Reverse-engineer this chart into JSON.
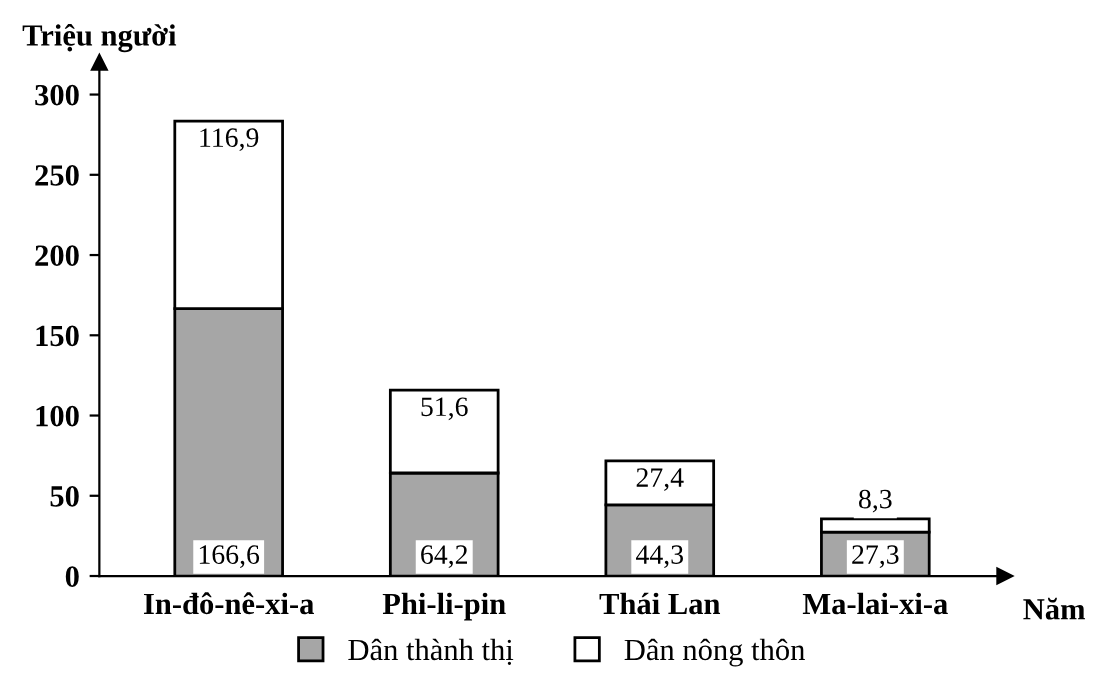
{
  "chart_data": {
    "type": "bar",
    "stacked": true,
    "ylabel": "Triệu người",
    "xlabel": "Năm",
    "categories": [
      "In-đô-nê-xi-a",
      "Phi-li-pin",
      "Thái Lan",
      "Ma-lai-xi-a"
    ],
    "series": [
      {
        "name": "Dân thành thị",
        "color": "#a6a6a6",
        "values": [
          166.6,
          64.2,
          44.3,
          27.3
        ],
        "value_labels": [
          "166,6",
          "64,2",
          "44,3",
          "27,3"
        ]
      },
      {
        "name": "Dân nông thôn",
        "color": "#ffffff",
        "values": [
          116.9,
          51.6,
          27.4,
          8.3
        ],
        "value_labels": [
          "116,9",
          "51,6",
          "27,4",
          "8,3"
        ]
      }
    ],
    "ylim": [
      0,
      320
    ],
    "yticks": [
      0,
      50,
      100,
      150,
      200,
      250,
      300
    ],
    "grid": false,
    "legend": "bottom"
  }
}
